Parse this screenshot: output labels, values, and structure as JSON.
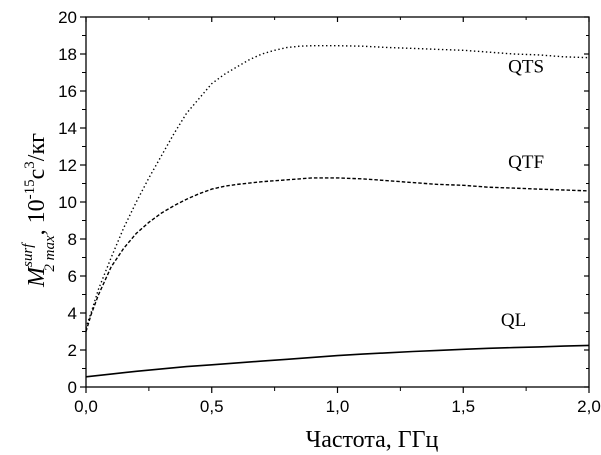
{
  "chart_data": {
    "type": "line",
    "title": "",
    "xlabel": "Частота, ГГц",
    "ylabel": {
      "main": "M",
      "sup": "surf",
      "sub": "2 max",
      "comma": ", ",
      "unit_base": "10",
      "unit_exp": "-15",
      "unit_c": "с",
      "unit_c_exp": "3",
      "unit_rest": "/кг"
    },
    "xlim": [
      0,
      2.0
    ],
    "ylim": [
      0,
      20
    ],
    "x_ticks": [
      0.0,
      0.5,
      1.0,
      1.5,
      2.0
    ],
    "x_tick_labels": [
      "0,0",
      "0,5",
      "1,0",
      "1,5",
      "2,0"
    ],
    "y_ticks": [
      0,
      2,
      4,
      6,
      8,
      10,
      12,
      14,
      16,
      18,
      20
    ],
    "y_tick_labels": [
      "0",
      "2",
      "4",
      "6",
      "8",
      "10",
      "12",
      "14",
      "16",
      "18",
      "20"
    ],
    "grid": false,
    "legend": "none",
    "series": [
      {
        "name": "QTS",
        "style": "dotted",
        "label_at": [
          1.75,
          17.0
        ],
        "x": [
          0.0,
          0.02,
          0.05,
          0.1,
          0.15,
          0.2,
          0.25,
          0.3,
          0.35,
          0.4,
          0.45,
          0.5,
          0.55,
          0.6,
          0.65,
          0.7,
          0.75,
          0.8,
          0.85,
          0.9,
          1.0,
          1.1,
          1.2,
          1.3,
          1.4,
          1.5,
          1.6,
          1.7,
          1.8,
          1.9,
          2.0
        ],
        "y": [
          3.2,
          4.0,
          5.3,
          7.0,
          8.6,
          10.0,
          11.3,
          12.5,
          13.7,
          14.8,
          15.6,
          16.4,
          16.9,
          17.3,
          17.7,
          18.0,
          18.2,
          18.35,
          18.42,
          18.45,
          18.45,
          18.42,
          18.35,
          18.3,
          18.25,
          18.2,
          18.1,
          18.0,
          17.95,
          17.85,
          17.8
        ]
      },
      {
        "name": "QTF",
        "style": "dashed",
        "label_at": [
          1.75,
          11.85
        ],
        "x": [
          0.0,
          0.02,
          0.05,
          0.1,
          0.15,
          0.2,
          0.25,
          0.3,
          0.35,
          0.4,
          0.45,
          0.5,
          0.55,
          0.6,
          0.7,
          0.8,
          0.9,
          1.0,
          1.1,
          1.2,
          1.3,
          1.4,
          1.5,
          1.6,
          1.7,
          1.8,
          1.9,
          2.0
        ],
        "y": [
          3.0,
          3.9,
          5.0,
          6.5,
          7.5,
          8.3,
          8.9,
          9.4,
          9.8,
          10.15,
          10.45,
          10.7,
          10.85,
          10.95,
          11.1,
          11.2,
          11.3,
          11.3,
          11.25,
          11.15,
          11.05,
          10.95,
          10.9,
          10.8,
          10.75,
          10.7,
          10.65,
          10.6
        ]
      },
      {
        "name": "QL",
        "style": "solid",
        "label_at": [
          1.7,
          3.3
        ],
        "x": [
          0.0,
          0.1,
          0.2,
          0.3,
          0.4,
          0.5,
          0.6,
          0.7,
          0.8,
          0.9,
          1.0,
          1.1,
          1.2,
          1.3,
          1.4,
          1.5,
          1.6,
          1.7,
          1.8,
          1.9,
          2.0
        ],
        "y": [
          0.55,
          0.7,
          0.85,
          0.98,
          1.1,
          1.2,
          1.3,
          1.4,
          1.5,
          1.6,
          1.7,
          1.78,
          1.85,
          1.92,
          1.98,
          2.04,
          2.09,
          2.13,
          2.17,
          2.21,
          2.25
        ]
      }
    ]
  }
}
